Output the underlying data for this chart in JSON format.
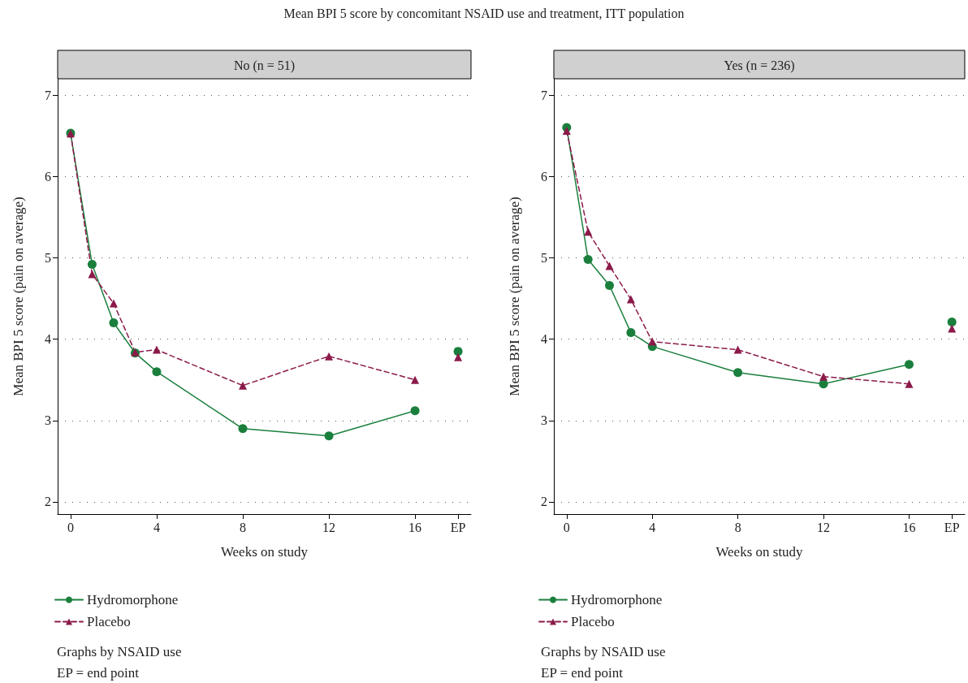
{
  "chart_data": [
    {
      "type": "line",
      "title": "Mean BPI 5 score by concomitant NSAID use and treatment, ITT population",
      "subtitle": "No (n = 51)",
      "xlabel": "Weeks on study",
      "ylabel": "Mean BPI 5 score (pain on average)",
      "x": [
        0,
        1,
        2,
        3,
        4,
        8,
        12,
        16,
        17,
        18
      ],
      "series": [
        {
          "name": "Hydromorphone",
          "color": "#1a7f3c",
          "marker": "circle",
          "line_style": "solid",
          "values": [
            6.53,
            4.92,
            4.2,
            3.83,
            3.6,
            2.9,
            2.81,
            3.12,
            null,
            3.85
          ]
        },
        {
          "name": "Placebo",
          "color": "#8b1a4a",
          "marker": "triangle",
          "line_style": "dashed",
          "values": [
            6.53,
            4.8,
            4.44,
            3.84,
            3.87,
            3.43,
            3.79,
            3.5,
            null,
            3.78
          ]
        }
      ],
      "xlim": [
        -0.6,
        18.6
      ],
      "xticks": [
        0,
        4,
        8,
        12,
        16,
        {
          "value": 18,
          "label": "EP"
        }
      ],
      "ylim": [
        1.85,
        7.2
      ],
      "yticks": [
        2,
        3,
        4,
        5,
        6,
        7
      ],
      "grid": "y",
      "legend": "bottom",
      "annotations": [
        "Graphs by NSAID use",
        "EP = end point"
      ]
    },
    {
      "type": "line",
      "subtitle": "Yes (n = 236)",
      "xlabel": "Weeks on study",
      "ylabel": "Mean BPI 5 score (pain on average)",
      "x": [
        0,
        1,
        2,
        3,
        4,
        8,
        12,
        16,
        17,
        18
      ],
      "series": [
        {
          "name": "Hydromorphone",
          "color": "#1a7f3c",
          "marker": "circle",
          "line_style": "solid",
          "values": [
            6.6,
            4.98,
            4.66,
            4.08,
            3.91,
            3.59,
            3.45,
            3.69,
            null,
            4.21
          ]
        },
        {
          "name": "Placebo",
          "color": "#8b1a4a",
          "marker": "triangle",
          "line_style": "dashed",
          "values": [
            6.56,
            5.32,
            4.9,
            4.49,
            3.97,
            3.87,
            3.54,
            3.45,
            null,
            4.13
          ]
        }
      ],
      "xlim": [
        -0.6,
        18.6
      ],
      "xticks": [
        0,
        4,
        8,
        12,
        16,
        {
          "value": 18,
          "label": "EP"
        }
      ],
      "ylim": [
        1.85,
        7.2
      ],
      "yticks": [
        2,
        3,
        4,
        5,
        6,
        7
      ],
      "grid": "y",
      "legend": "bottom",
      "annotations": [
        "Graphs by NSAID use",
        "EP = end point"
      ]
    }
  ]
}
